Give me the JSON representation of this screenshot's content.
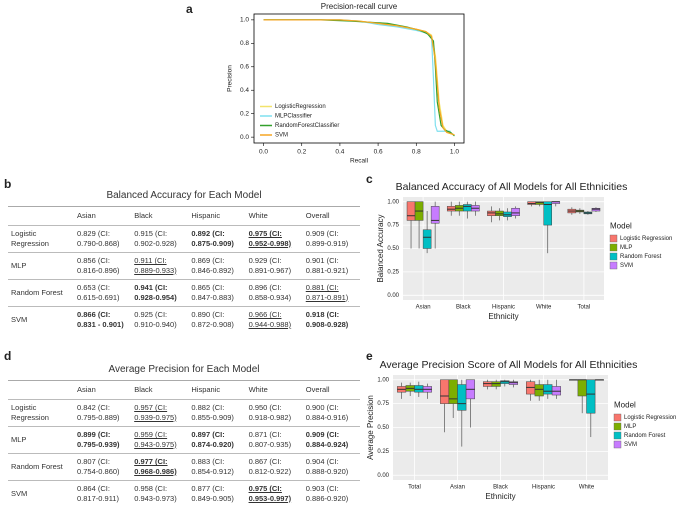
{
  "panel_labels": [
    "a",
    "b",
    "c",
    "d",
    "e"
  ],
  "chart_data": [
    {
      "type": "pr",
      "title": "Precision-recall curve",
      "x_label": "Recall",
      "y_label": "Precision",
      "xlim": [
        -0.05,
        1.05
      ],
      "ylim": [
        -0.05,
        1.05
      ],
      "xticks": [
        {
          "value": 0,
          "label": "0.0"
        },
        0.2,
        0.4,
        0.6,
        0.8,
        {
          "value": 1,
          "label": "1.0"
        }
      ],
      "yticks": [
        {
          "value": 0,
          "label": "0.0"
        },
        0.2,
        0.4,
        0.6,
        0.8,
        {
          "value": 1,
          "label": "1.0"
        }
      ],
      "legend": "lower left",
      "series": [
        {
          "name": "LogisticRegression",
          "color": "#f2e36b",
          "x": [
            0,
            0.2,
            0.4,
            0.5,
            0.6,
            0.7,
            0.8,
            0.85,
            0.88,
            0.9,
            0.92,
            0.94,
            0.96,
            0.98,
            1.0
          ],
          "values": [
            1,
            1,
            1,
            0.99,
            0.97,
            0.95,
            0.92,
            0.9,
            0.87,
            0.7,
            0.3,
            0.1,
            0.05,
            0.03,
            0.02
          ]
        },
        {
          "name": "MLPClassifier",
          "color": "#7fe0ef",
          "x": [
            0,
            0.2,
            0.4,
            0.5,
            0.6,
            0.7,
            0.8,
            0.85,
            0.88,
            0.89,
            0.9,
            0.91,
            0.93,
            0.95,
            0.98
          ],
          "values": [
            1,
            1,
            1,
            0.99,
            0.96,
            0.94,
            0.91,
            0.89,
            0.85,
            0.5,
            0.1,
            0.05,
            0.05,
            0.05,
            0.05
          ]
        },
        {
          "name": "RandomForestClassifier",
          "color": "#33a02c",
          "x": [
            0,
            0.3,
            0.45,
            0.55,
            0.65,
            0.75,
            0.82,
            0.86,
            0.89,
            0.9,
            0.91,
            0.93,
            0.95,
            0.98,
            1.0
          ],
          "values": [
            1,
            1,
            0.99,
            0.98,
            0.97,
            0.94,
            0.91,
            0.88,
            0.82,
            0.6,
            0.3,
            0.1,
            0.06,
            0.04,
            0.01
          ]
        },
        {
          "name": "SVM",
          "color": "#f5a623",
          "x": [
            0,
            0.2,
            0.4,
            0.5,
            0.6,
            0.7,
            0.8,
            0.85,
            0.88,
            0.9,
            0.92,
            0.94,
            0.96,
            0.98,
            1.0
          ],
          "values": [
            1,
            1,
            1,
            0.99,
            0.97,
            0.95,
            0.92,
            0.9,
            0.86,
            0.65,
            0.25,
            0.08,
            0.04,
            0.03,
            0.02
          ]
        }
      ]
    },
    {
      "type": "box",
      "title": "Balanced Accuracy of All Models for All Ethnicities",
      "x_label": "Ethnicity",
      "y_label": "Balanced Accuracy",
      "categories": [
        "Asian",
        "Black",
        "Hispanic",
        "White",
        "Total"
      ],
      "ylim": [
        -0.05,
        1.05
      ],
      "yticks": [
        {
          "value": 0,
          "label": "0.00"
        },
        0.25,
        {
          "value": 0.5,
          "label": "0.50"
        },
        0.75,
        {
          "value": 1,
          "label": "1.00"
        }
      ],
      "grid": true,
      "legend": "right",
      "legend_title": "Model",
      "series": [
        {
          "name": "Logistic Regression",
          "color": "#f8766d",
          "values": [
            [
              0.5,
              0.8,
              0.85,
              1.0,
              1.0
            ],
            [
              0.85,
              0.9,
              0.92,
              0.95,
              1.0
            ],
            [
              0.78,
              0.85,
              0.88,
              0.9,
              0.95
            ],
            [
              0.95,
              0.97,
              0.98,
              1.0,
              1.0
            ],
            [
              0.86,
              0.88,
              0.9,
              0.92,
              0.94
            ]
          ]
        },
        {
          "name": "MLP",
          "color": "#7cae00",
          "values": [
            [
              0.5,
              0.8,
              0.9,
              1.0,
              1.0
            ],
            [
              0.85,
              0.9,
              0.93,
              0.96,
              1.0
            ],
            [
              0.8,
              0.85,
              0.87,
              0.9,
              0.93
            ],
            [
              0.95,
              0.97,
              0.99,
              1.0,
              1.0
            ],
            [
              0.87,
              0.89,
              0.9,
              0.91,
              0.93
            ]
          ]
        },
        {
          "name": "Random Forest",
          "color": "#00bfc4",
          "values": [
            [
              0.45,
              0.5,
              0.62,
              0.7,
              0.9
            ],
            [
              0.82,
              0.9,
              0.95,
              0.97,
              1.0
            ],
            [
              0.8,
              0.84,
              0.86,
              0.89,
              0.93
            ],
            [
              0.45,
              0.75,
              0.97,
              1.0,
              1.0
            ],
            [
              0.86,
              0.87,
              0.88,
              0.89,
              0.9
            ]
          ]
        },
        {
          "name": "SVM",
          "color": "#c77cff",
          "values": [
            [
              0.5,
              0.77,
              0.8,
              0.95,
              1.0
            ],
            [
              0.85,
              0.9,
              0.93,
              0.96,
              1.0
            ],
            [
              0.82,
              0.85,
              0.88,
              0.93,
              0.95
            ],
            [
              0.95,
              0.98,
              1.0,
              1.0,
              1.0
            ],
            [
              0.89,
              0.9,
              0.92,
              0.93,
              0.94
            ]
          ]
        }
      ]
    },
    {
      "type": "box",
      "title": "Average Precision Score of All Models for All Ethnicities",
      "x_label": "Ethnicity",
      "y_label": "Average Precision",
      "categories": [
        "Total",
        "Asian",
        "Black",
        "Hispanic",
        "White"
      ],
      "ylim": [
        -0.05,
        1.05
      ],
      "yticks": [
        {
          "value": 0,
          "label": "0.00"
        },
        0.25,
        {
          "value": 0.5,
          "label": "0.50"
        },
        0.75,
        {
          "value": 1,
          "label": "1.00"
        }
      ],
      "grid": true,
      "legend": "right",
      "legend_title": "Model",
      "series": [
        {
          "name": "Logistic Regression",
          "color": "#f8766d",
          "values": [
            [
              0.8,
              0.87,
              0.9,
              0.93,
              0.97
            ],
            [
              0.45,
              0.75,
              0.83,
              1.0,
              1.0
            ],
            [
              0.9,
              0.93,
              0.96,
              0.98,
              1.0
            ],
            [
              0.78,
              0.85,
              0.92,
              0.98,
              1.0
            ],
            [
              1,
              1,
              1,
              1,
              1
            ]
          ]
        },
        {
          "name": "MLP",
          "color": "#7cae00",
          "values": [
            [
              0.83,
              0.88,
              0.91,
              0.94,
              0.97
            ],
            [
              0.6,
              0.75,
              0.8,
              1.0,
              1.0
            ],
            [
              0.9,
              0.93,
              0.96,
              0.98,
              1.0
            ],
            [
              0.78,
              0.83,
              0.9,
              0.95,
              1.0
            ],
            [
              0.65,
              0.83,
              1.0,
              1.0,
              1.0
            ]
          ]
        },
        {
          "name": "Random Forest",
          "color": "#00bfc4",
          "values": [
            [
              0.82,
              0.87,
              0.9,
              0.94,
              0.98
            ],
            [
              0.3,
              0.68,
              0.75,
              0.95,
              1.0
            ],
            [
              0.93,
              0.96,
              0.98,
              0.99,
              1.0
            ],
            [
              0.8,
              0.85,
              0.88,
              0.95,
              1.0
            ],
            [
              0.4,
              0.65,
              0.85,
              1.0,
              1.0
            ]
          ]
        },
        {
          "name": "SVM",
          "color": "#c77cff",
          "values": [
            [
              0.8,
              0.87,
              0.9,
              0.93,
              0.96
            ],
            [
              0.5,
              0.8,
              0.9,
              1.0,
              1.0
            ],
            [
              0.92,
              0.95,
              0.97,
              0.98,
              1.0
            ],
            [
              0.8,
              0.84,
              0.88,
              0.93,
              1.0
            ],
            [
              1,
              1,
              1,
              1,
              1
            ]
          ]
        }
      ]
    }
  ],
  "tables": [
    {
      "title": "Balanced Accuracy for Each Model",
      "columns": [
        "Asian",
        "Black",
        "Hispanic",
        "White",
        "Overall"
      ],
      "rows": [
        {
          "label": "Logistic Regression",
          "cells": [
            "0.829 (CI: 0.790-0.868)",
            "0.915 (CI: 0.902-0.928)",
            {
              "text": "0.892 (CI: 0.875-0.909)",
              "style": "bold"
            },
            {
              "text": "0.975 (CI: 0.952-0.998)",
              "style": "bold underline"
            },
            "0.909 (CI: 0.899-0.919)"
          ]
        },
        {
          "label": "MLP",
          "cells": [
            "0.856 (CI: 0.816-0.896)",
            {
              "text": "0.911 (CI: 0.889-0.933)",
              "style": "underline"
            },
            "0.869 (CI: 0.846-0.892)",
            "0.929 (CI: 0.891-0.967)",
            "0.901 (CI: 0.881-0.921)"
          ]
        },
        {
          "label": "Random Forest",
          "cells": [
            "0.653 (CI: 0.615-0.691)",
            {
              "text": "0.941 (CI: 0.928-0.954)",
              "style": "bold"
            },
            "0.865 (CI: 0.847-0.883)",
            "0.896 (CI: 0.858-0.934)",
            {
              "text": "0.881 (CI: 0.871-0.891)",
              "style": "underline"
            }
          ]
        },
        {
          "label": "SVM",
          "cells": [
            {
              "text": "0.866 (CI: 0.831 - 0.901)",
              "style": "bold"
            },
            "0.925 (CI: 0.910-0.940)",
            "0.890 (CI: 0.872-0.908)",
            {
              "text": "0.966 (CI: 0.944-0.988)",
              "style": "underline"
            },
            {
              "text": "0.918 (CI: 0.908-0.928)",
              "style": "bold"
            }
          ]
        }
      ]
    },
    {
      "title": "Average Precision for Each Model",
      "columns": [
        "Asian",
        "Black",
        "Hispanic",
        "White",
        "Overall"
      ],
      "rows": [
        {
          "label": "Logistic Regression",
          "cells": [
            "0.842 (CI: 0.795-0.889)",
            {
              "text": "0.957 (CI: 0.939-0.975)",
              "style": "underline"
            },
            "0.882 (CI: 0.855-0.909)",
            "0.950 (CI: 0.918-0.982)",
            "0.900 (CI: 0.884-0.916)"
          ]
        },
        {
          "label": "MLP",
          "cells": [
            {
              "text": "0.899 (CI: 0.795-0.939)",
              "style": "bold"
            },
            {
              "text": "0.959 (CI: 0.943-0.975)",
              "style": "underline"
            },
            {
              "text": "0.897 (CI: 0.874-0.920)",
              "style": "bold"
            },
            "0.871 (CI: 0.807-0.935)",
            {
              "text": "0.909 (CI: 0.884-0.924)",
              "style": "bold"
            }
          ]
        },
        {
          "label": "Random Forest",
          "cells": [
            "0.807 (CI: 0.754-0.860)",
            {
              "text": "0.977 (CI: 0.968-0.986)",
              "style": "bold underline"
            },
            "0.883 (CI: 0.854-0.912)",
            "0.867 (CI: 0.812-0.922)",
            "0.904 (CI: 0.888-0.920)"
          ]
        },
        {
          "label": "SVM",
          "cells": [
            "0.864 (CI: 0.817-0.911)",
            "0.958 (CI: 0.943-0.973)",
            "0.877 (CI: 0.849-0.905)",
            {
              "text": "0.975 (CI: 0.953-0.997)",
              "style": "bold underline"
            },
            "0.903 (CI: 0.886-0.920)"
          ]
        }
      ]
    }
  ]
}
